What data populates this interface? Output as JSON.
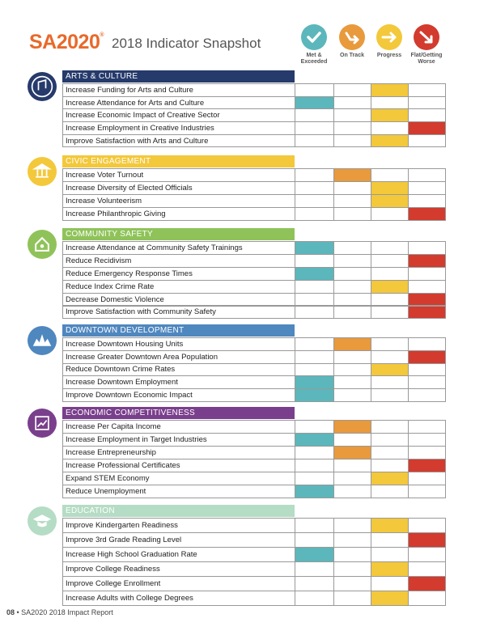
{
  "header": {
    "logo": "SA2020",
    "registered": "®",
    "title": "2018 Indicator Snapshot"
  },
  "legend": [
    {
      "label": "Met &\nExceeded",
      "color": "#5bb7bb"
    },
    {
      "label": "On Track",
      "color": "#e89a3c"
    },
    {
      "label": "Progress",
      "color": "#f3c83a"
    },
    {
      "label": "Flat/Getting\nWorse",
      "color": "#d23b2e"
    }
  ],
  "sections": [
    {
      "title": "ARTS & CULTURE",
      "color": "#263a6b",
      "rows": [
        {
          "label": "Increase Funding for Arts and Culture",
          "status": "Progress"
        },
        {
          "label": "Increase Attendance for Arts and Culture",
          "status": "Met &\nExceeded"
        },
        {
          "label": "Increase Economic Impact of Creative Sector",
          "status": "Progress"
        },
        {
          "label": "Increase Employment in Creative Industries",
          "status": "Flat/Getting\nWorse"
        },
        {
          "label": "Improve Satisfaction with Arts and Culture",
          "status": "Progress"
        }
      ]
    },
    {
      "title": "CIVIC ENGAGEMENT",
      "color": "#f3c83b",
      "rows": [
        {
          "label": "Increase Voter Turnout",
          "status": "On Track"
        },
        {
          "label": "Increase Diversity of Elected Officials",
          "status": "Progress"
        },
        {
          "label": "Increase Volunteerism",
          "status": "Progress"
        },
        {
          "label": "Increase Philanthropic Giving",
          "status": "Flat/Getting\nWorse"
        }
      ]
    },
    {
      "title": "COMMUNITY SAFETY",
      "color": "#8fc35a",
      "rows": [
        {
          "label": "Increase Attendance at Community Safety Trainings",
          "status": "Met &\nExceeded"
        },
        {
          "label": "Reduce Recidivism",
          "status": "Flat/Getting\nWorse"
        },
        {
          "label": "Reduce Emergency Response Times",
          "status": "Met &\nExceeded"
        },
        {
          "label": "Reduce Index Crime Rate",
          "status": "Progress"
        },
        {
          "label": "Decrease Domestic Violence",
          "status": "Flat/Getting\nWorse"
        },
        {
          "label": "Improve Satisfaction with Community Safety",
          "status": "Flat/Getting\nWorse"
        }
      ]
    },
    {
      "title": "DOWNTOWN DEVELOPMENT",
      "color": "#4f87bf",
      "rows": [
        {
          "label": "Increase Downtown Housing Units",
          "status": "On Track"
        },
        {
          "label": "Increase Greater Downtown Area Population",
          "status": "Flat/Getting\nWorse"
        },
        {
          "label": "Reduce Downtown Crime Rates",
          "status": "Progress"
        },
        {
          "label": "Increase Downtown Employment",
          "status": "Met &\nExceeded"
        },
        {
          "label": "Improve Downtown Economic Impact",
          "status": "Met &\nExceeded"
        }
      ]
    },
    {
      "title": "ECONOMIC COMPETITIVENESS",
      "color": "#7a3f8c",
      "rows": [
        {
          "label": "Increase Per Capita Income",
          "status": "On Track"
        },
        {
          "label": "Increase Employment in Target Industries",
          "status": "Met &\nExceeded"
        },
        {
          "label": "Increase Entrepreneurship",
          "status": "On Track"
        },
        {
          "label": "Increase Professional Certificates",
          "status": "Flat/Getting\nWorse"
        },
        {
          "label": "Expand STEM Economy",
          "status": "Progress"
        },
        {
          "label": "Reduce Unemployment",
          "status": "Met &\nExceeded"
        }
      ]
    },
    {
      "title": "EDUCATION",
      "color": "#b5dcc4",
      "rows": [
        {
          "label": "Improve Kindergarten Readiness",
          "status": "Progress"
        },
        {
          "label": "Improve 3rd Grade Reading Level",
          "status": "Flat/Getting\nWorse"
        },
        {
          "label": "Increase High School Graduation Rate",
          "status": "Met &\nExceeded"
        },
        {
          "label": "Improve College Readiness",
          "status": "Progress"
        },
        {
          "label": "Improve College Enrollment",
          "status": "Flat/Getting\nWorse"
        },
        {
          "label": "Increase Adults with College Degrees",
          "status": "Progress"
        }
      ]
    }
  ],
  "footer": {
    "page": "08",
    "text": "SA2020 2018 Impact Report"
  }
}
